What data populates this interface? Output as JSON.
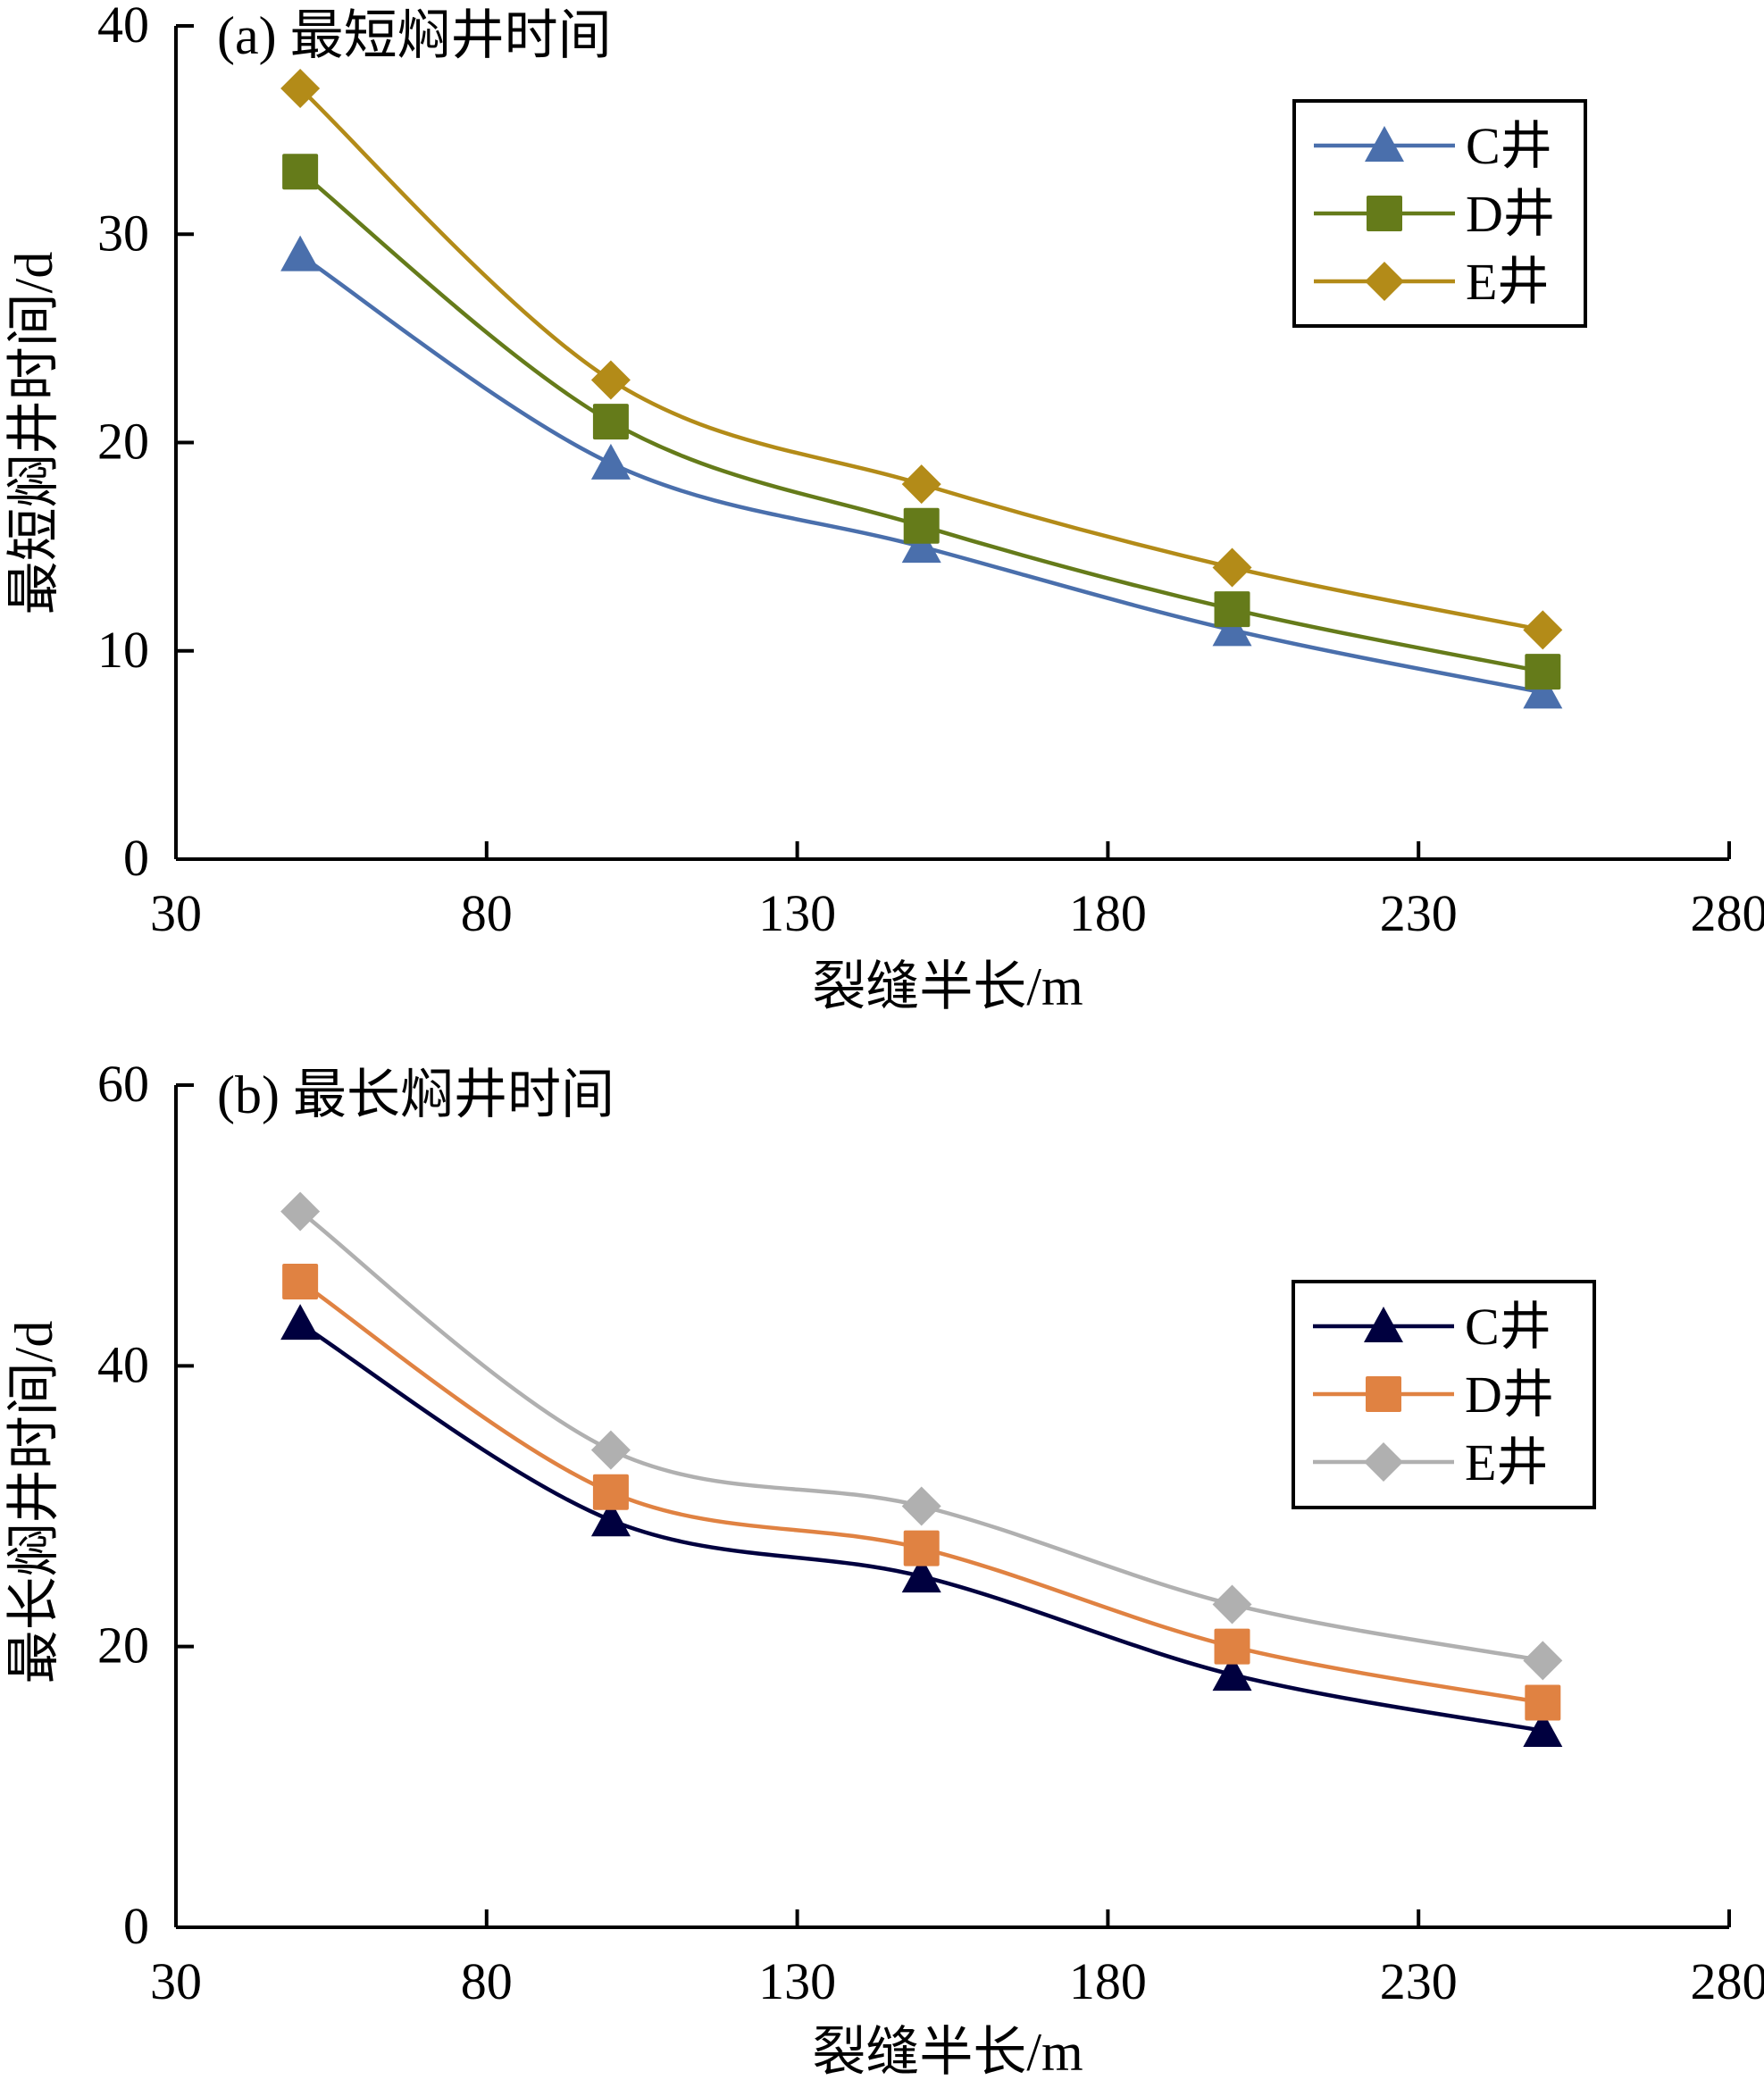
{
  "chart_data": [
    {
      "type": "line",
      "title": "(a) 最短焖井时间",
      "xlabel": "裂缝半长/m",
      "ylabel": "最短焖井时间/d",
      "xlim": [
        30,
        280
      ],
      "ylim": [
        0,
        40
      ],
      "xticks": [
        30,
        80,
        130,
        180,
        230,
        280
      ],
      "yticks": [
        0,
        10,
        20,
        30,
        40
      ],
      "grid": false,
      "smooth": true,
      "legend_position": "top-right",
      "x": [
        50,
        100,
        150,
        200,
        250
      ],
      "series": [
        {
          "name": "C井",
          "marker": "triangle",
          "color": "#4a6fac",
          "values": [
            29,
            19,
            15,
            11,
            8
          ]
        },
        {
          "name": "D井",
          "marker": "square",
          "color": "#657b1a",
          "values": [
            33,
            21,
            16,
            12,
            9
          ]
        },
        {
          "name": "E井",
          "marker": "diamond",
          "color": "#b38b18",
          "values": [
            37,
            23,
            18,
            14,
            11
          ]
        }
      ]
    },
    {
      "type": "line",
      "title": "(b) 最长焖井时间",
      "xlabel": "裂缝半长/m",
      "ylabel": "最长焖井时间/d",
      "xlim": [
        30,
        280
      ],
      "ylim": [
        0,
        60
      ],
      "xticks": [
        30,
        80,
        130,
        180,
        230,
        280
      ],
      "yticks": [
        0,
        20,
        40,
        60
      ],
      "grid": false,
      "smooth": true,
      "legend_position": "right",
      "x": [
        50,
        100,
        150,
        200,
        250
      ],
      "series": [
        {
          "name": "C井",
          "marker": "triangle",
          "color": "#00003f",
          "values": [
            43,
            29,
            25,
            18,
            14
          ]
        },
        {
          "name": "D井",
          "marker": "square",
          "color": "#e08242",
          "values": [
            46,
            31,
            27,
            20,
            16
          ]
        },
        {
          "name": "E井",
          "marker": "diamond",
          "color": "#b0b0b0",
          "values": [
            51,
            34,
            30,
            23,
            19
          ]
        }
      ]
    }
  ]
}
